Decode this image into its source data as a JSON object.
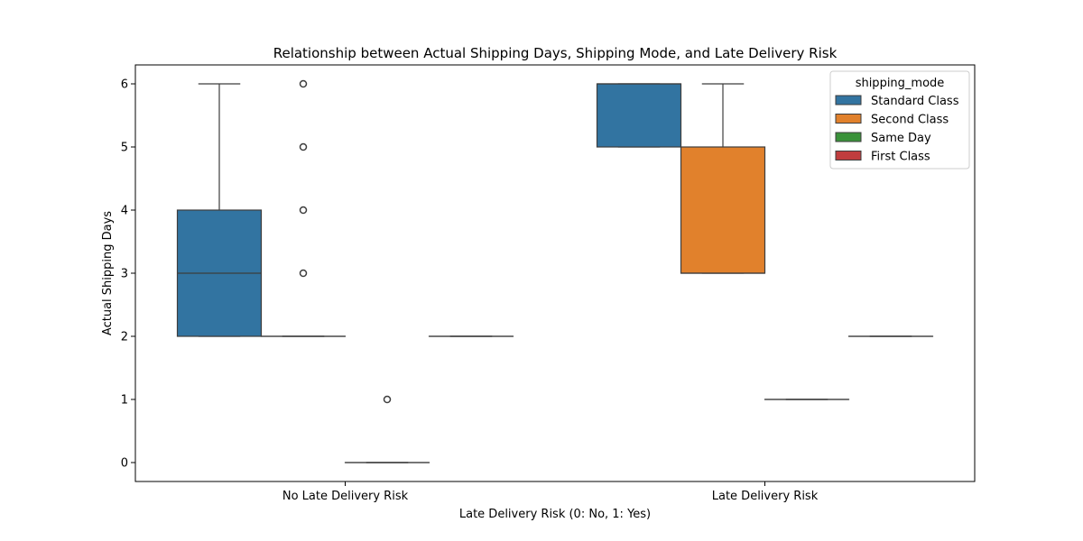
{
  "chart_data": {
    "type": "box",
    "title": "Relationship between Actual Shipping Days, Shipping Mode, and Late Delivery Risk",
    "xlabel": "Late Delivery Risk (0: No, 1: Yes)",
    "ylabel": "Actual Shipping Days",
    "ylim": [
      -0.3,
      6.3
    ],
    "yticks": [
      0,
      1,
      2,
      3,
      4,
      5,
      6
    ],
    "categories": [
      "No Late Delivery Risk",
      "Late Delivery Risk"
    ],
    "grid": false,
    "legend": {
      "title": "shipping_mode",
      "placement": "top-right"
    },
    "series": [
      {
        "name": "Standard Class",
        "color": "#3274a1",
        "boxes": [
          {
            "category": "No Late Delivery Risk",
            "whisker_low": 2,
            "q1": 2,
            "median": 3,
            "q3": 4,
            "whisker_high": 6,
            "outliers": []
          },
          {
            "category": "Late Delivery Risk",
            "whisker_low": 5,
            "q1": 5,
            "median": 6,
            "q3": 6,
            "whisker_high": 6,
            "outliers": []
          }
        ]
      },
      {
        "name": "Second Class",
        "color": "#e1812c",
        "boxes": [
          {
            "category": "No Late Delivery Risk",
            "whisker_low": 2,
            "q1": 2,
            "median": 2,
            "q3": 2,
            "whisker_high": 2,
            "outliers": [
              3,
              4,
              5,
              6
            ]
          },
          {
            "category": "Late Delivery Risk",
            "whisker_low": 3,
            "q1": 3,
            "median": 3,
            "q3": 5,
            "whisker_high": 6,
            "outliers": []
          }
        ]
      },
      {
        "name": "Same Day",
        "color": "#3a923a",
        "boxes": [
          {
            "category": "No Late Delivery Risk",
            "whisker_low": 0,
            "q1": 0,
            "median": 0,
            "q3": 0,
            "whisker_high": 0,
            "outliers": [
              1
            ]
          },
          {
            "category": "Late Delivery Risk",
            "whisker_low": 1,
            "q1": 1,
            "median": 1,
            "q3": 1,
            "whisker_high": 1,
            "outliers": []
          }
        ]
      },
      {
        "name": "First Class",
        "color": "#c03d3e",
        "boxes": [
          {
            "category": "No Late Delivery Risk",
            "whisker_low": 2,
            "q1": 2,
            "median": 2,
            "q3": 2,
            "whisker_high": 2,
            "outliers": []
          },
          {
            "category": "Late Delivery Risk",
            "whisker_low": 2,
            "q1": 2,
            "median": 2,
            "q3": 2,
            "whisker_high": 2,
            "outliers": []
          }
        ]
      }
    ]
  }
}
